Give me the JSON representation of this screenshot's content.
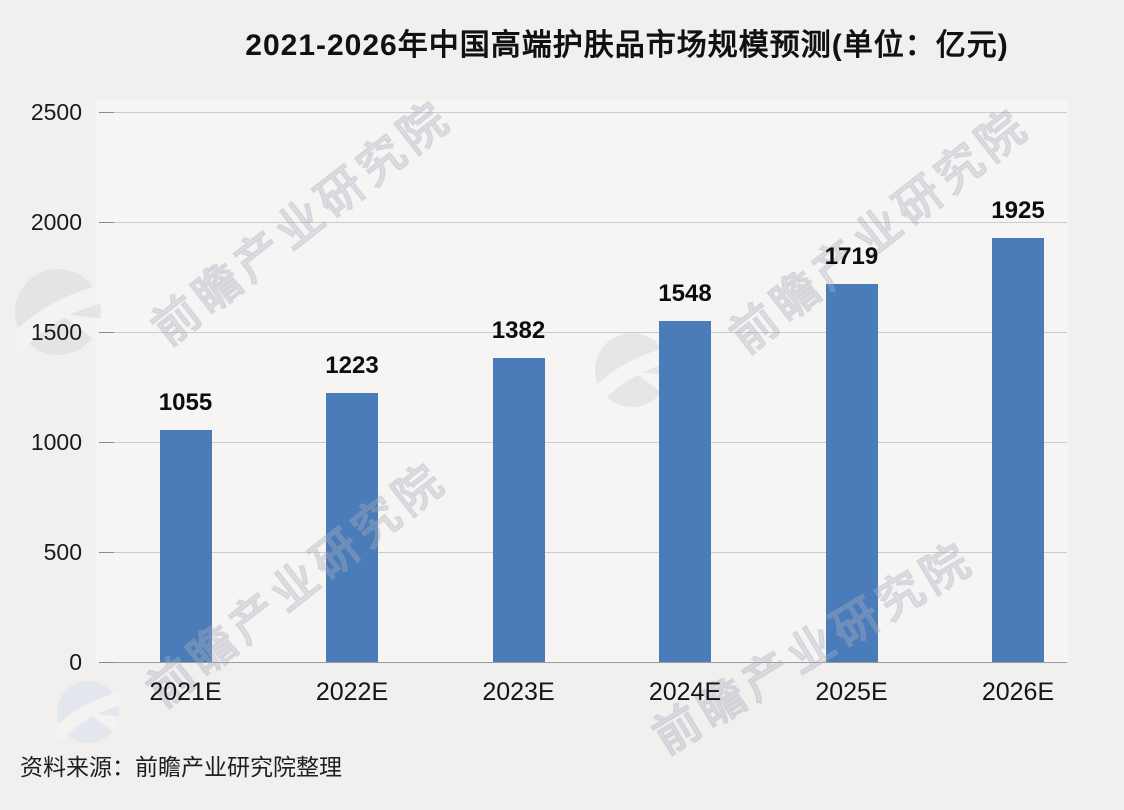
{
  "title": "2021-2026年中国高端护肤品市场规模预测(单位：亿元)",
  "source": "资料来源：前瞻产业研究院整理",
  "watermark": {
    "text": "前瞻产业研究院",
    "logo": "qianzhan-logo"
  },
  "colors": {
    "bar": "#4a7cba",
    "background": "#f1f0ef",
    "plot_background": "#f6f5f4",
    "gridline": "#cccbcb",
    "axis_line": "#9c9b9b",
    "text": "#111111",
    "watermark": "#d8dae0"
  },
  "chart_data": {
    "type": "bar",
    "categories": [
      "2021E",
      "2022E",
      "2023E",
      "2024E",
      "2025E",
      "2026E"
    ],
    "values": [
      1055,
      1223,
      1382,
      1548,
      1719,
      1925
    ],
    "bar_labels": [
      1055,
      1223,
      1382,
      1548,
      1719,
      1925
    ],
    "title": "2021-2026年中国高端护肤品市场规模预测(单位：亿元)",
    "xlabel": "",
    "ylabel": "",
    "ylim": [
      0,
      2500
    ],
    "yticks": [
      0,
      500,
      1000,
      1500,
      2000,
      2500
    ],
    "grid": true,
    "legend": false
  }
}
